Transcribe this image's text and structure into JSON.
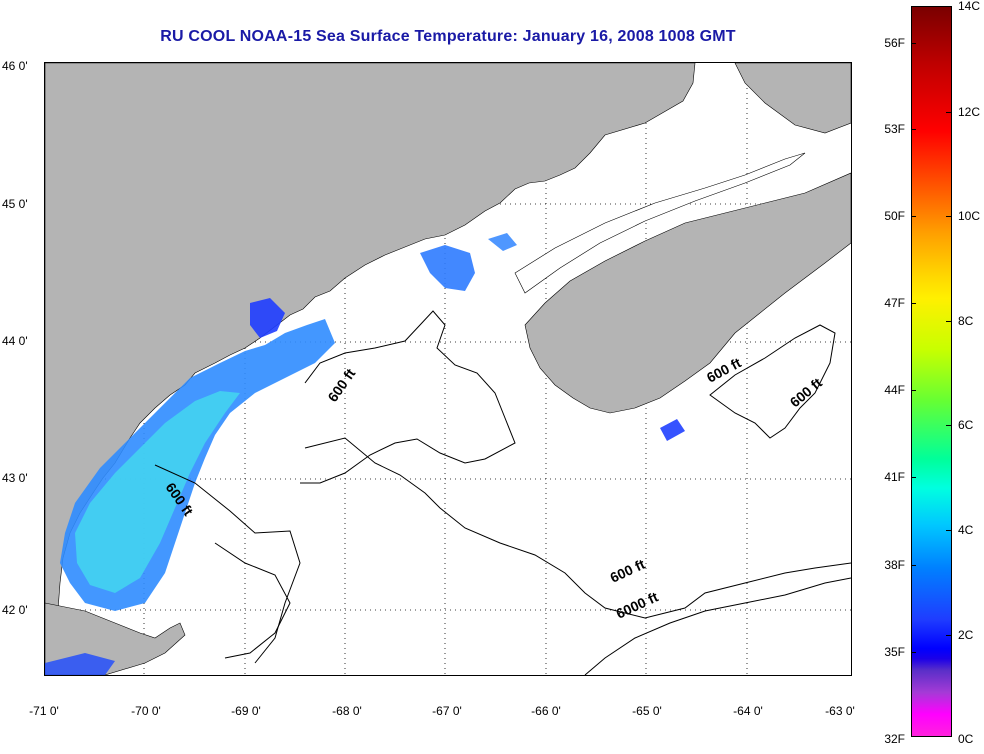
{
  "title": "RU COOL  NOAA-15  Sea Surface Temperature:  January 16, 2008 1008 GMT",
  "map": {
    "lon_labels": [
      "-71 0'",
      "-70 0'",
      "-69 0'",
      "-68 0'",
      "-67 0'",
      "-66 0'",
      "-65 0'",
      "-64 0'",
      "-63 0'"
    ],
    "lat_labels": [
      "46 0'",
      "45 0'",
      "44 0'",
      "43 0'",
      "42 0'"
    ],
    "contour_labels": [
      "600 ft",
      "600 ft",
      "600 ft",
      "600 ft",
      "600 ft",
      "6000 ft"
    ],
    "land_color": "#b4b4b4",
    "cloud_color": "#ffffff",
    "sst_color_scale": "rainbow"
  },
  "colorbar": {
    "fahrenheit_labels": [
      "56F",
      "53F",
      "50F",
      "47F",
      "44F",
      "41F",
      "38F",
      "35F",
      "32F"
    ],
    "celsius_labels": [
      "14C",
      "12C",
      "10C",
      "8C",
      "6C",
      "4C",
      "2C",
      "0C"
    ]
  }
}
